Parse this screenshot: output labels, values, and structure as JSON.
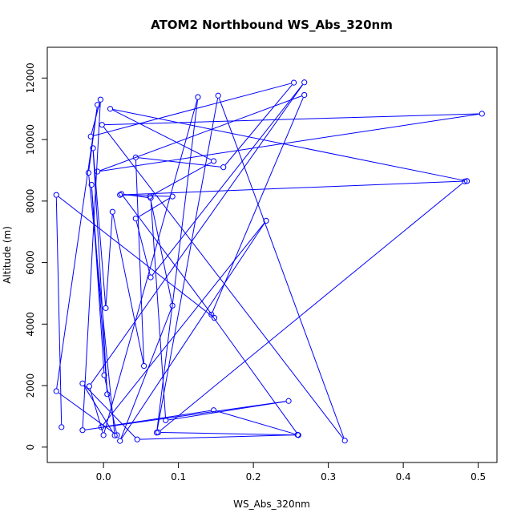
{
  "chart_data": {
    "type": "line",
    "title": "ATOM2 Northbound WS_Abs_320nm",
    "xlabel": "WS_Abs_320nm",
    "ylabel": "Altitude (m)",
    "xlim": [
      -0.075,
      0.525
    ],
    "ylim": [
      -500,
      13000
    ],
    "xticks": [
      0,
      0.1,
      0.2,
      0.3,
      0.4,
      0.5
    ],
    "xtick_labels": [
      "0.0",
      "0.1",
      "0.2",
      "0.3",
      "0.4",
      "0.5"
    ],
    "yticks": [
      0,
      2000,
      4000,
      6000,
      8000,
      10000,
      12000
    ],
    "ytick_labels": [
      "0",
      "2000",
      "4000",
      "6000",
      "8000",
      "10000",
      "12000"
    ],
    "series_color": "#0000ff",
    "grid": false,
    "series": [
      {
        "points": [
          [
            -0.056,
            650
          ],
          [
            -0.063,
            8200
          ],
          [
            0.148,
            4200
          ],
          [
            0.024,
            8230
          ],
          [
            0.063,
            8100
          ],
          [
            0.083,
            870
          ],
          [
            0.247,
            1500
          ],
          [
            -0.028,
            550
          ],
          [
            -0.004,
            11300
          ],
          [
            -0.017,
            10100
          ],
          [
            0.254,
            11850
          ],
          [
            0.16,
            9100
          ],
          [
            0.043,
            9420
          ],
          [
            0.054,
            2640
          ],
          [
            0.012,
            7650
          ],
          [
            0.003,
            4520
          ],
          [
            -0.014,
            9720
          ],
          [
            0.005,
            1720
          ],
          [
            -0.016,
            8530
          ],
          [
            0.001,
            2340
          ],
          [
            0.018,
            390
          ],
          [
            -0.063,
            1820
          ],
          [
            -0.008,
            11130
          ],
          [
            -0.02,
            8920
          ],
          [
            0.015,
            380
          ],
          [
            -0.028,
            2070
          ],
          [
            0.045,
            250
          ],
          [
            0.259,
            400
          ],
          [
            0.147,
            1200
          ],
          [
            -0.003,
            650
          ],
          [
            0.217,
            7360
          ],
          [
            0.022,
            200
          ],
          [
            0.092,
            4600
          ],
          [
            0.062,
            8150
          ],
          [
            0.147,
            9300
          ],
          [
            0.009,
            11000
          ],
          [
            0.485,
            8650
          ],
          [
            0.022,
            8200
          ],
          [
            0.092,
            8150
          ],
          [
            0.043,
            7430
          ],
          [
            0.063,
            5520
          ],
          [
            0.268,
            11860
          ],
          [
            -0.019,
            1980
          ],
          [
            0.0,
            390
          ],
          [
            0.126,
            11380
          ],
          [
            0.071,
            470
          ],
          [
            0.153,
            11430
          ],
          [
            0.322,
            210
          ],
          [
            -0.002,
            10480
          ],
          [
            0.505,
            10840
          ],
          [
            -0.008,
            8960
          ],
          [
            0.268,
            11450
          ],
          [
            0.144,
            4310
          ],
          [
            0.26,
            390
          ],
          [
            0.073,
            480
          ],
          [
            0.482,
            8640
          ]
        ]
      }
    ]
  }
}
